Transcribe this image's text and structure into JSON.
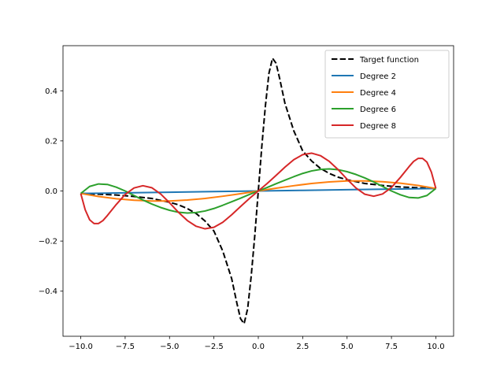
{
  "chart_data": {
    "type": "line",
    "title": "",
    "xlabel": "",
    "ylabel": "",
    "xlim": [
      -11,
      11
    ],
    "ylim": [
      -0.58,
      0.58
    ],
    "grid": false,
    "legend_position": "top-right",
    "x_ticks": [
      -10.0,
      -7.5,
      -5.0,
      -2.5,
      0.0,
      2.5,
      5.0,
      7.5,
      10.0
    ],
    "x_tick_labels": [
      "−10.0",
      "−7.5",
      "−5.0",
      "−2.5",
      "0.0",
      "2.5",
      "5.0",
      "7.5",
      "10.0"
    ],
    "y_ticks": [
      -0.4,
      -0.2,
      0.0,
      0.2,
      0.4
    ],
    "y_tick_labels": [
      "−0.4",
      "−0.2",
      "0.0",
      "0.2",
      "0.4"
    ],
    "series": [
      {
        "name": "Target function",
        "color": "#000000",
        "dash": "dashed",
        "x": [
          -10,
          -9,
          -8,
          -7,
          -6,
          -5,
          -4.5,
          -4,
          -3.5,
          -3,
          -2.5,
          -2,
          -1.5,
          -1.2,
          -1,
          -0.8,
          -0.6,
          -0.4,
          -0.2,
          0,
          0.2,
          0.4,
          0.6,
          0.8,
          1,
          1.2,
          1.5,
          2,
          2.5,
          3,
          3.5,
          4,
          4.5,
          5,
          6,
          7,
          8,
          9,
          10
        ],
        "y": [
          -0.01,
          -0.013,
          -0.016,
          -0.022,
          -0.03,
          -0.045,
          -0.055,
          -0.07,
          -0.09,
          -0.12,
          -0.16,
          -0.24,
          -0.35,
          -0.45,
          -0.51,
          -0.53,
          -0.47,
          -0.34,
          -0.18,
          0,
          0.18,
          0.34,
          0.47,
          0.53,
          0.51,
          0.45,
          0.35,
          0.24,
          0.16,
          0.12,
          0.09,
          0.07,
          0.055,
          0.045,
          0.03,
          0.022,
          0.016,
          0.013,
          0.01
        ]
      },
      {
        "name": "Degree 2",
        "color": "#1f77b4",
        "dash": "solid",
        "x": [
          -10,
          -7.5,
          -5,
          -2.5,
          0,
          2.5,
          5,
          7.5,
          10
        ],
        "y": [
          -0.01,
          -0.0075,
          -0.005,
          -0.0025,
          0,
          0.0025,
          0.005,
          0.0075,
          0.01
        ]
      },
      {
        "name": "Degree 4",
        "color": "#ff7f0e",
        "dash": "solid",
        "x": [
          -10,
          -9,
          -8,
          -7,
          -6,
          -5,
          -4,
          -3,
          -2,
          -1,
          0,
          1,
          2,
          3,
          4,
          5,
          6,
          7,
          8,
          9,
          10
        ],
        "y": [
          -0.01,
          -0.022,
          -0.031,
          -0.037,
          -0.04,
          -0.04,
          -0.036,
          -0.03,
          -0.021,
          -0.011,
          0,
          0.011,
          0.021,
          0.03,
          0.036,
          0.04,
          0.04,
          0.037,
          0.031,
          0.022,
          0.01
        ]
      },
      {
        "name": "Degree 6",
        "color": "#2ca02c",
        "dash": "solid",
        "x": [
          -10,
          -9.5,
          -9,
          -8.5,
          -8,
          -7.5,
          -7,
          -6.5,
          -6,
          -5.5,
          -5,
          -4.5,
          -4,
          -3.5,
          -3,
          -2.5,
          -2,
          -1.5,
          -1,
          -0.5,
          0,
          0.5,
          1,
          1.5,
          2,
          2.5,
          3,
          3.5,
          4,
          4.5,
          5,
          5.5,
          6,
          6.5,
          7,
          7.5,
          8,
          8.5,
          9,
          9.5,
          10
        ],
        "y": [
          -0.01,
          0.018,
          0.028,
          0.026,
          0.015,
          0.0,
          -0.018,
          -0.036,
          -0.052,
          -0.066,
          -0.077,
          -0.085,
          -0.088,
          -0.086,
          -0.08,
          -0.07,
          -0.057,
          -0.043,
          -0.029,
          -0.014,
          0,
          0.014,
          0.029,
          0.043,
          0.057,
          0.07,
          0.08,
          0.086,
          0.088,
          0.085,
          0.077,
          0.066,
          0.052,
          0.036,
          0.018,
          0.0,
          -0.015,
          -0.026,
          -0.028,
          -0.018,
          0.01
        ]
      },
      {
        "name": "Degree 8",
        "color": "#d62728",
        "dash": "solid",
        "x": [
          -10,
          -9.75,
          -9.5,
          -9.25,
          -9,
          -8.75,
          -8.5,
          -8,
          -7.5,
          -7,
          -6.5,
          -6,
          -5.5,
          -5,
          -4.5,
          -4,
          -3.5,
          -3,
          -2.5,
          -2,
          -1.5,
          -1,
          -0.5,
          0,
          0.5,
          1,
          1.5,
          2,
          2.5,
          3,
          3.5,
          4,
          4.5,
          5,
          5.5,
          6,
          6.5,
          7,
          7.5,
          8,
          8.5,
          8.75,
          9,
          9.25,
          9.5,
          9.75,
          10
        ],
        "y": [
          -0.01,
          -0.075,
          -0.115,
          -0.13,
          -0.13,
          -0.118,
          -0.098,
          -0.054,
          -0.014,
          0.012,
          0.021,
          0.013,
          -0.012,
          -0.047,
          -0.085,
          -0.118,
          -0.141,
          -0.151,
          -0.145,
          -0.125,
          -0.095,
          -0.062,
          -0.03,
          0,
          0.03,
          0.062,
          0.095,
          0.125,
          0.145,
          0.151,
          0.141,
          0.118,
          0.085,
          0.047,
          0.012,
          -0.013,
          -0.021,
          -0.012,
          0.014,
          0.054,
          0.098,
          0.118,
          0.13,
          0.13,
          0.115,
          0.075,
          0.01
        ]
      }
    ]
  }
}
